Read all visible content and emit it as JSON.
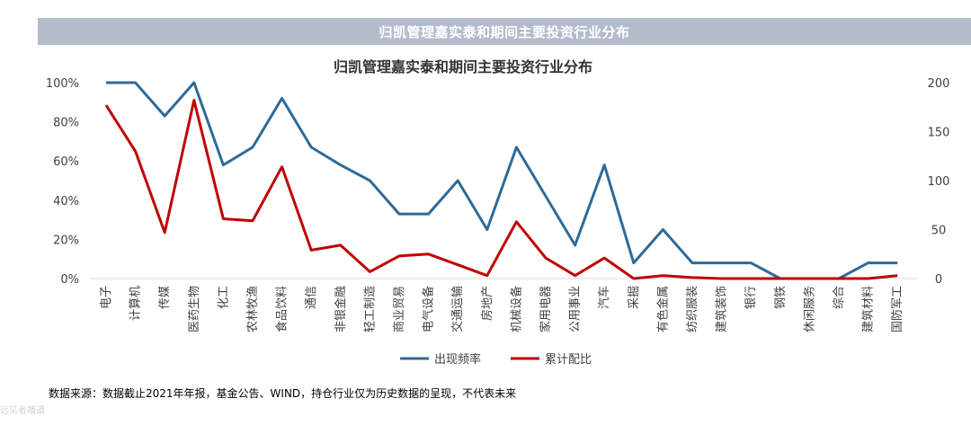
{
  "banner": {
    "title": "归凯管理嘉实泰和期间主要投资行业分布"
  },
  "footnote": "数据来源：数据截止2021年年报，基金公告、WIND，持仓行业仅为历史数据的呈现，不代表未来",
  "corner_mark": "远见者播道",
  "colors": {
    "frequency": "#2e6a97",
    "cumulative": "#c00000",
    "banner": "#b4bccc"
  },
  "chart_data": {
    "type": "line",
    "title": "归凯管理嘉实泰和期间主要投资行业分布",
    "categories": [
      "电子",
      "计算机",
      "传媒",
      "医药生物",
      "化工",
      "农林牧渔",
      "食品饮料",
      "通信",
      "非银金融",
      "轻工制造",
      "商业贸易",
      "电气设备",
      "交通运输",
      "房地产",
      "机械设备",
      "家用电器",
      "公用事业",
      "汽车",
      "采掘",
      "有色金属",
      "纺织服装",
      "建筑装饰",
      "银行",
      "钢铁",
      "休闲服务",
      "综合",
      "建筑材料",
      "国防军工"
    ],
    "series": [
      {
        "name": "出现频率",
        "axis": "left",
        "values": [
          100,
          100,
          83,
          100,
          58,
          67,
          92,
          67,
          58,
          50,
          33,
          33,
          50,
          25,
          67,
          42,
          17,
          58,
          8,
          25,
          8,
          8,
          8,
          0,
          0,
          0,
          8,
          8
        ]
      },
      {
        "name": "累计配比",
        "axis": "right",
        "values": [
          177,
          130,
          47,
          182,
          61,
          59,
          114,
          29,
          34,
          7,
          23,
          25,
          14,
          3,
          58,
          21,
          3,
          21,
          0,
          3,
          1,
          0,
          0,
          0,
          0,
          0,
          0,
          3
        ]
      }
    ],
    "y_left": {
      "ticks": [
        "0%",
        "20%",
        "40%",
        "60%",
        "80%",
        "100%"
      ],
      "ylim": [
        0,
        100
      ]
    },
    "y_right": {
      "ticks": [
        "0",
        "50",
        "100",
        "150",
        "200"
      ],
      "ylim": [
        0,
        200
      ]
    },
    "legend_position": "bottom",
    "grid": false
  }
}
